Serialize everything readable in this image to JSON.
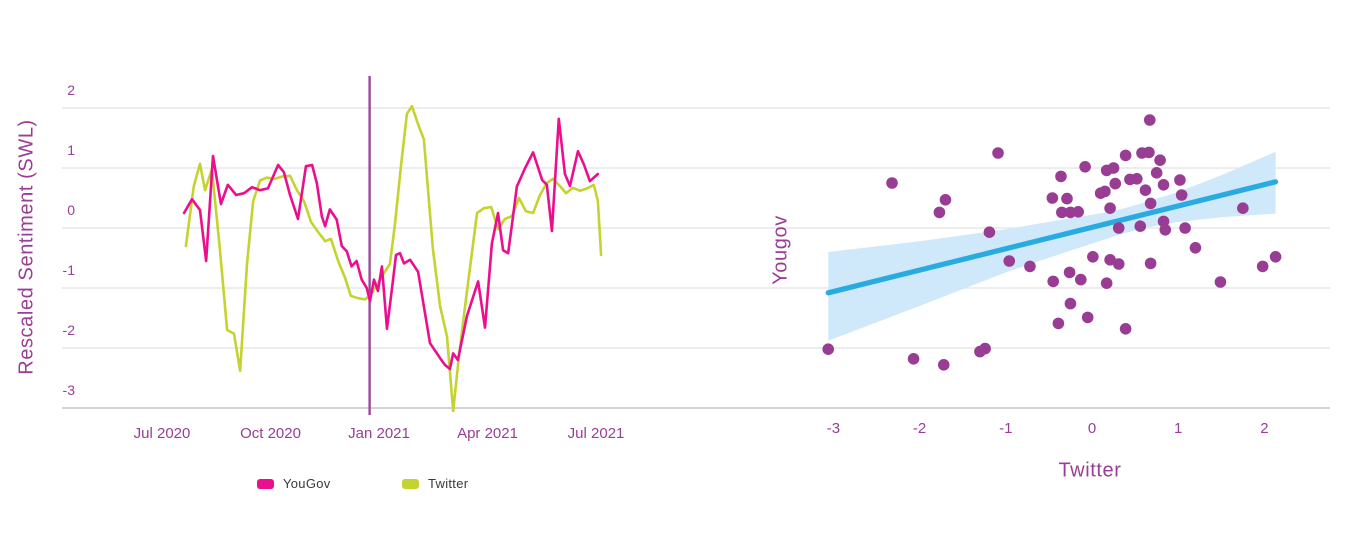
{
  "colors": {
    "background": "#ffffff",
    "axis_text": "#993d97",
    "gridline": "#e2e2e2",
    "baseline": "#c6c6c6",
    "yougov_pink": "#ec0f8d",
    "twitter_green": "#c4d32f",
    "event_line_purple": "#9b4a9b",
    "scatter_dot_purple": "#993c94",
    "regression_blue": "#29abe2",
    "confidence_band_blue": "#cfe9fb",
    "legend_text": "#3a3a3a"
  },
  "chart_data": [
    {
      "type": "line",
      "title": "",
      "xlabel": "",
      "ylabel": "Rescaled Sentiment (SWL)",
      "x_unit": "months since Jul 2020 tick",
      "ylim": [
        -3,
        2
      ],
      "grid": true,
      "y_ticks": [
        {
          "label": "2",
          "v": 2
        },
        {
          "label": "1",
          "v": 1
        },
        {
          "label": "0",
          "v": 0
        },
        {
          "label": "-1",
          "v": -1
        },
        {
          "label": "-2",
          "v": -2
        },
        {
          "label": "-3",
          "v": -3
        }
      ],
      "x_ticks": [
        {
          "label": "Jul 2020",
          "month": 0
        },
        {
          "label": "Oct 2020",
          "month": 3
        },
        {
          "label": "Jan 2021",
          "month": 6
        },
        {
          "label": "Apr 2021",
          "month": 9
        },
        {
          "label": "Jul 2021",
          "month": 12
        }
      ],
      "vertical_marker_month": 5.74,
      "legend_position": "bottom",
      "series": [
        {
          "name": "YouGov",
          "color": "#ec0f8d",
          "x": [
            0.61,
            0.83,
            1.05,
            1.22,
            1.41,
            1.63,
            1.82,
            2.05,
            2.27,
            2.49,
            2.71,
            2.93,
            3.21,
            3.37,
            3.54,
            3.76,
            3.98,
            4.15,
            4.28,
            4.42,
            4.51,
            4.64,
            4.83,
            4.97,
            5.11,
            5.24,
            5.38,
            5.52,
            5.66,
            5.75,
            5.86,
            5.97,
            6.08,
            6.22,
            6.36,
            6.47,
            6.58,
            6.69,
            6.86,
            7.08,
            7.41,
            7.69,
            7.82,
            7.96,
            8.05,
            8.18,
            8.43,
            8.74,
            8.93,
            9.12,
            9.29,
            9.43,
            9.57,
            9.7,
            9.81,
            10.04,
            10.26,
            10.51,
            10.64,
            10.78,
            10.97,
            11.14,
            11.28,
            11.5,
            11.67,
            11.83,
            12.05
          ],
          "y": [
            0.25,
            0.48,
            0.3,
            -0.55,
            1.2,
            0.4,
            0.72,
            0.55,
            0.58,
            0.68,
            0.63,
            0.66,
            1.05,
            0.93,
            0.55,
            0.15,
            1.03,
            1.05,
            0.75,
            0.19,
            0.03,
            0.31,
            0.14,
            -0.3,
            -0.39,
            -0.64,
            -0.55,
            -0.86,
            -1.0,
            -1.22,
            -0.86,
            -1.05,
            -0.64,
            -1.68,
            -1.0,
            -0.45,
            -0.42,
            -0.59,
            -0.53,
            -0.73,
            -1.92,
            -2.17,
            -2.28,
            -2.35,
            -2.09,
            -2.2,
            -1.47,
            -0.89,
            -1.66,
            -0.26,
            0.25,
            -0.37,
            -0.42,
            0.17,
            0.69,
            1.0,
            1.26,
            0.8,
            0.72,
            -0.05,
            1.82,
            0.9,
            0.7,
            1.28,
            1.05,
            0.78,
            0.9
          ]
        },
        {
          "name": "Twitter",
          "color": "#c4d32f",
          "x": [
            0.66,
            0.88,
            1.05,
            1.19,
            1.38,
            1.6,
            1.8,
            1.99,
            2.16,
            2.35,
            2.52,
            2.71,
            2.9,
            3.12,
            3.34,
            3.54,
            3.73,
            3.93,
            4.12,
            4.31,
            4.51,
            4.67,
            4.87,
            5.06,
            5.22,
            5.42,
            5.61,
            5.75,
            5.94,
            6.14,
            6.3,
            6.44,
            6.61,
            6.77,
            6.91,
            7.08,
            7.24,
            7.38,
            7.49,
            7.69,
            7.88,
            8.05,
            8.21,
            8.4,
            8.54,
            8.71,
            8.9,
            9.1,
            9.29,
            9.48,
            9.68,
            9.87,
            10.06,
            10.26,
            10.45,
            10.64,
            10.81,
            11.0,
            11.17,
            11.36,
            11.56,
            11.75,
            11.94,
            12.05,
            12.14
          ],
          "y": [
            -0.3,
            0.7,
            1.07,
            0.63,
            0.98,
            -0.35,
            -1.7,
            -1.76,
            -2.38,
            -0.6,
            0.45,
            0.79,
            0.84,
            0.82,
            0.86,
            0.87,
            0.63,
            0.44,
            0.1,
            -0.06,
            -0.22,
            -0.18,
            -0.55,
            -0.83,
            -1.13,
            -1.17,
            -1.19,
            -1.13,
            -0.95,
            -0.75,
            -0.6,
            0.06,
            1.05,
            1.9,
            2.03,
            1.73,
            1.48,
            0.45,
            -0.35,
            -1.31,
            -1.81,
            -3.05,
            -2.14,
            -1.2,
            -0.55,
            0.25,
            0.33,
            0.35,
            -0.02,
            0.15,
            0.2,
            0.5,
            0.28,
            0.25,
            0.55,
            0.75,
            0.82,
            0.7,
            0.58,
            0.67,
            0.62,
            0.66,
            0.72,
            0.45,
            -0.45
          ]
        }
      ]
    },
    {
      "type": "scatter",
      "title": "",
      "xlabel": "Twitter",
      "ylabel": "Yougov",
      "xlim": [
        -3.5,
        3
      ],
      "ylim": [
        -3,
        2
      ],
      "grid": true,
      "x_ticks": [
        {
          "label": "-3",
          "v": -3
        },
        {
          "label": "-2",
          "v": -2
        },
        {
          "label": "-1",
          "v": -1
        },
        {
          "label": "0",
          "v": 0
        },
        {
          "label": "1",
          "v": 1
        },
        {
          "label": "2",
          "v": 2
        }
      ],
      "points": [
        [
          -3.06,
          -2.02
        ],
        [
          -2.32,
          0.75
        ],
        [
          -2.07,
          -2.18
        ],
        [
          -1.77,
          0.26
        ],
        [
          -1.72,
          -2.28
        ],
        [
          -1.7,
          0.47
        ],
        [
          -1.3,
          -2.06
        ],
        [
          -1.24,
          -2.01
        ],
        [
          -1.19,
          -0.07
        ],
        [
          -1.09,
          1.25
        ],
        [
          -0.96,
          -0.55
        ],
        [
          -0.72,
          -0.64
        ],
        [
          -0.46,
          0.5
        ],
        [
          -0.45,
          -0.89
        ],
        [
          -0.39,
          -1.59
        ],
        [
          -0.36,
          0.86
        ],
        [
          -0.35,
          0.26
        ],
        [
          -0.29,
          0.49
        ],
        [
          -0.26,
          -0.74
        ],
        [
          -0.25,
          0.26
        ],
        [
          -0.25,
          -1.26
        ],
        [
          -0.16,
          0.27
        ],
        [
          -0.13,
          -0.86
        ],
        [
          -0.08,
          1.02
        ],
        [
          -0.05,
          -1.49
        ],
        [
          0.01,
          -0.48
        ],
        [
          0.1,
          0.58
        ],
        [
          0.15,
          0.61
        ],
        [
          0.17,
          0.96
        ],
        [
          0.17,
          -0.92
        ],
        [
          0.21,
          0.33
        ],
        [
          0.21,
          -0.53
        ],
        [
          0.25,
          1.0
        ],
        [
          0.27,
          0.74
        ],
        [
          0.31,
          0.0
        ],
        [
          0.31,
          -0.6
        ],
        [
          0.39,
          1.21
        ],
        [
          0.39,
          -1.68
        ],
        [
          0.44,
          0.81
        ],
        [
          0.52,
          0.82
        ],
        [
          0.56,
          0.03
        ],
        [
          0.58,
          1.25
        ],
        [
          0.62,
          0.63
        ],
        [
          0.66,
          1.26
        ],
        [
          0.67,
          1.8
        ],
        [
          0.68,
          0.41
        ],
        [
          0.68,
          -0.59
        ],
        [
          0.75,
          0.92
        ],
        [
          0.79,
          1.13
        ],
        [
          0.83,
          0.72
        ],
        [
          0.83,
          0.11
        ],
        [
          0.85,
          -0.03
        ],
        [
          1.02,
          0.8
        ],
        [
          1.04,
          0.55
        ],
        [
          1.08,
          0.0
        ],
        [
          1.2,
          -0.33
        ],
        [
          1.49,
          -0.9
        ],
        [
          1.75,
          0.33
        ],
        [
          1.98,
          -0.64
        ],
        [
          2.13,
          -0.48
        ]
      ],
      "regression": {
        "x1": -3.06,
        "y1": -1.08,
        "x2": 2.13,
        "y2": 0.77,
        "color": "#29abe2"
      },
      "confidence_band": {
        "x": [
          -3.06,
          -2.0,
          -1.0,
          -0.3,
          0.0,
          0.3,
          0.6,
          1.0,
          1.5,
          2.13
        ],
        "top": [
          -0.4,
          -0.22,
          -0.02,
          0.15,
          0.22,
          0.3,
          0.42,
          0.6,
          0.88,
          1.27
        ],
        "bottom": [
          -1.88,
          -1.3,
          -0.74,
          -0.4,
          -0.26,
          -0.12,
          0.0,
          0.1,
          0.18,
          0.24
        ],
        "color": "#cfe9fb"
      }
    }
  ]
}
